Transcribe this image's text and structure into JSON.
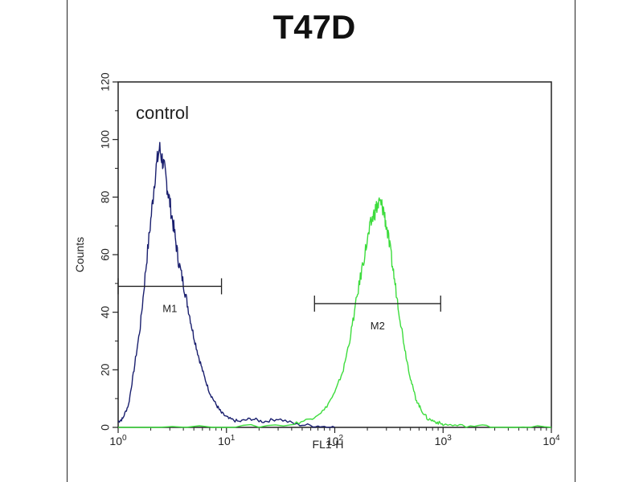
{
  "chart_data": {
    "type": "line",
    "title": "T47D",
    "xlabel": "FL1-H",
    "ylabel": "Counts",
    "x_scale": "log",
    "xlim": [
      1,
      10000
    ],
    "ylim": [
      0,
      120
    ],
    "x_ticks": [
      {
        "value": 1,
        "base": "10",
        "exp": "0"
      },
      {
        "value": 10,
        "base": "10",
        "exp": "1"
      },
      {
        "value": 100,
        "base": "10",
        "exp": "2"
      },
      {
        "value": 1000,
        "base": "10",
        "exp": "3"
      },
      {
        "value": 10000,
        "base": "10",
        "exp": "4"
      }
    ],
    "y_ticks": [
      "0",
      "20",
      "40",
      "60",
      "80",
      "100",
      "120"
    ],
    "annotation": "control",
    "grid": false,
    "series": [
      {
        "color": "#1a1f6e",
        "x": [
          1.0,
          1.1,
          1.25,
          1.4,
          1.6,
          1.8,
          2.0,
          2.2,
          2.4,
          2.6,
          2.8,
          3.0,
          3.3,
          3.6,
          4.0,
          4.4,
          4.9,
          5.5,
          6.2,
          7.0,
          8.0,
          9.0,
          10.5,
          13,
          17,
          22,
          30,
          45,
          70,
          100
        ],
        "y": [
          2,
          3,
          8,
          20,
          35,
          55,
          72,
          88,
          97,
          92,
          85,
          78,
          68,
          58,
          50,
          42,
          33,
          25,
          18,
          12,
          8,
          5,
          3,
          2,
          3,
          2,
          3,
          1,
          0.5,
          0
        ]
      },
      {
        "color": "#3ddc3d",
        "x": [
          1,
          10,
          40,
          60,
          80,
          100,
          120,
          140,
          160,
          180,
          200,
          220,
          240,
          260,
          280,
          300,
          330,
          360,
          400,
          450,
          500,
          560,
          630,
          720,
          850,
          1000,
          1500,
          3000,
          10000
        ],
        "y": [
          0,
          0,
          1,
          3,
          6,
          12,
          20,
          32,
          45,
          56,
          65,
          72,
          76,
          78,
          76,
          70,
          60,
          50,
          38,
          26,
          17,
          10,
          6,
          3,
          2,
          1,
          0.5,
          0.3,
          0
        ]
      }
    ],
    "markers": [
      {
        "label": "M1",
        "x_start": 1.0,
        "x_end": 9.0,
        "y": 49
      },
      {
        "label": "M2",
        "x_start": 65,
        "x_end": 950,
        "y": 43
      }
    ]
  }
}
